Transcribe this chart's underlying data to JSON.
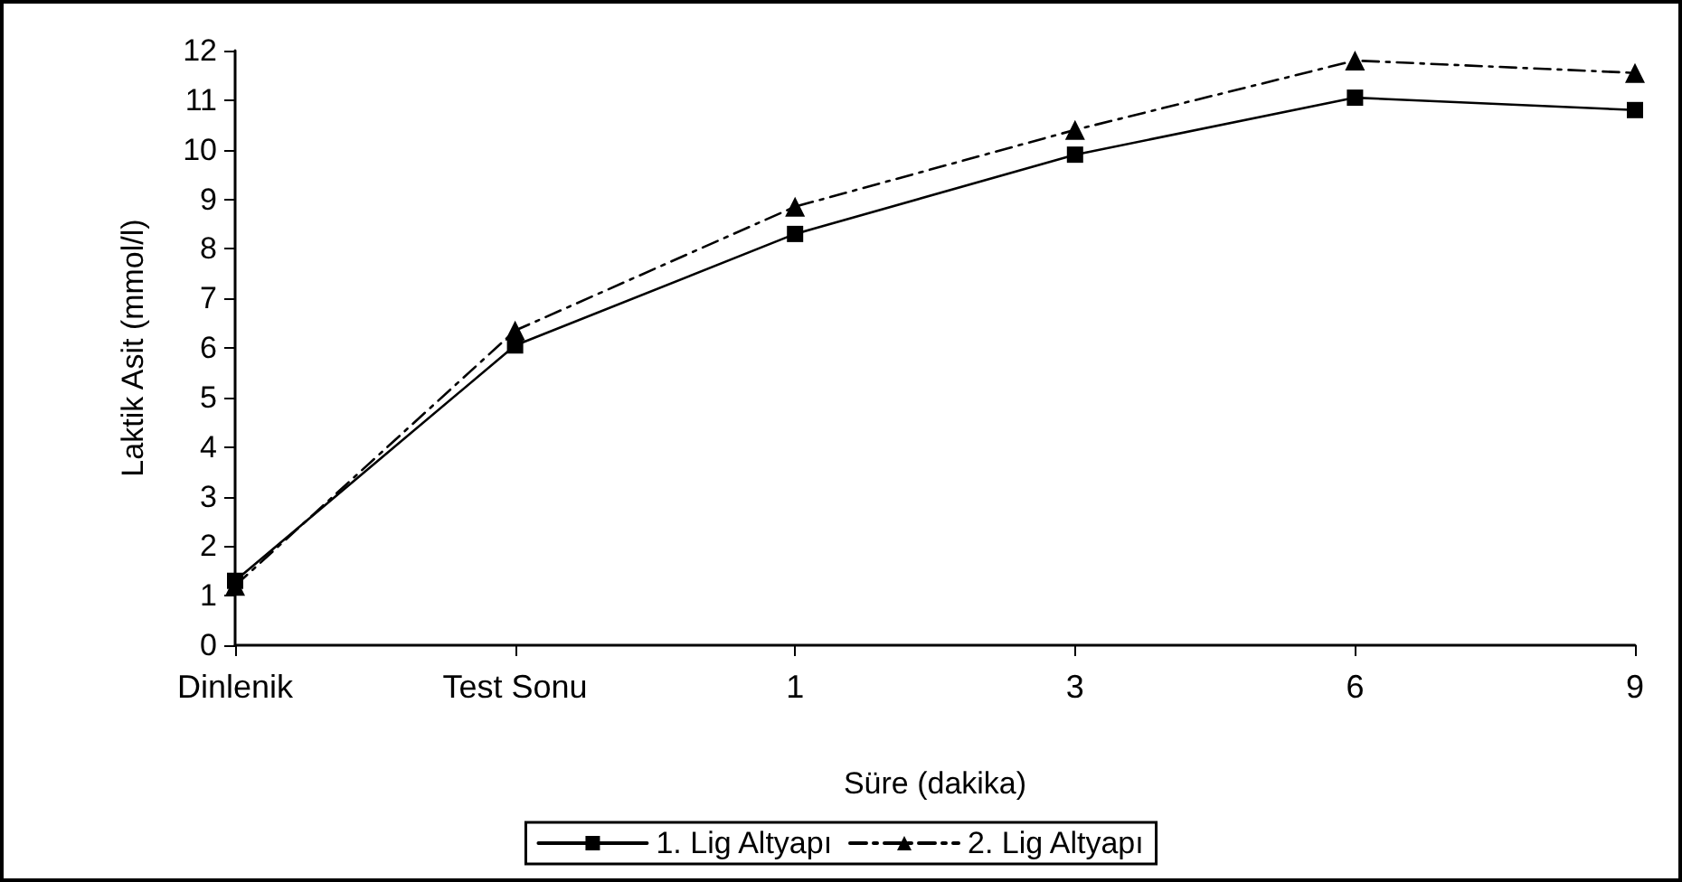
{
  "chart_data": {
    "type": "line",
    "xlabel": "Süre (dakika)",
    "ylabel": "Laktik Asit (mmol/l)",
    "categories": [
      "Dinlenik",
      "Test Sonu",
      "1",
      "3",
      "6",
      "9"
    ],
    "series": [
      {
        "name": "1. Lig Altyapı",
        "color": "#000000",
        "marker": "square",
        "line_style": "solid",
        "values": [
          1.3,
          6.05,
          8.3,
          9.9,
          11.05,
          10.8
        ]
      },
      {
        "name": "2. Lig Altyapı",
        "color": "#000000",
        "marker": "triangle",
        "line_style": "dashed",
        "values": [
          1.2,
          6.35,
          8.85,
          10.4,
          11.8,
          11.55
        ]
      }
    ],
    "ylim": [
      0,
      12
    ],
    "yticks": [
      0,
      1,
      2,
      3,
      4,
      5,
      6,
      7,
      8,
      9,
      10,
      11,
      12
    ],
    "grid": false,
    "legend": "bottom"
  }
}
